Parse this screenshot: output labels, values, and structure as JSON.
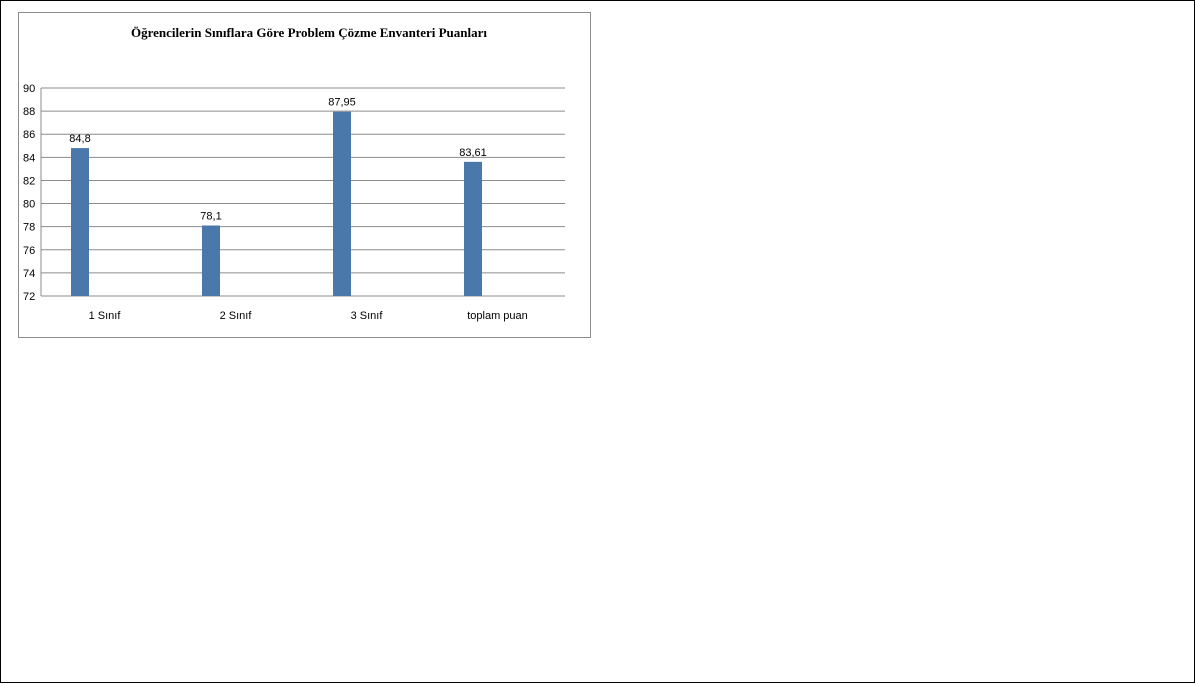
{
  "chart_data": {
    "type": "bar",
    "title": "Öğrencilerin Sınıflara Göre Problem Çözme Envanteri Puanları",
    "categories": [
      "1 Sınıf",
      "2 Sınıf",
      "3 Sınıf",
      "toplam puan"
    ],
    "values": [
      84.8,
      78.1,
      87.95,
      83.61
    ],
    "value_labels": [
      "84,8",
      "78,1",
      "87,95",
      "83,61"
    ],
    "ylim": [
      72,
      90
    ],
    "yticks": [
      "72",
      "74",
      "76",
      "78",
      "80",
      "82",
      "84",
      "86",
      "88",
      "90"
    ],
    "grid": true,
    "bar_color": "#4a78aa",
    "grid_color": "#8c8c8c",
    "legend": "none"
  }
}
